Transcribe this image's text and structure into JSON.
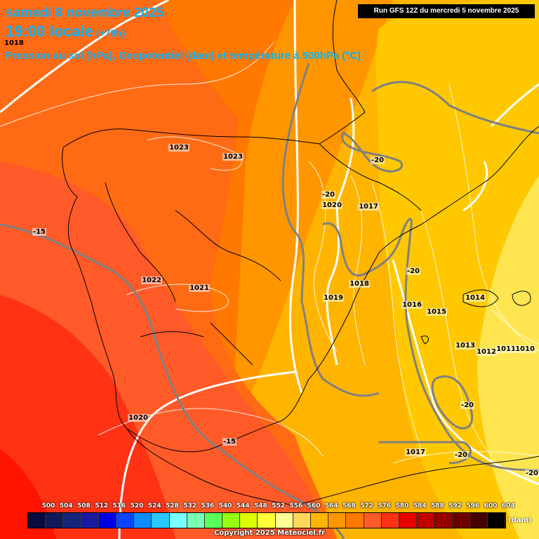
{
  "header": {
    "date_line": "samedi 8 novembre 2025",
    "time_line": "19:00 locale",
    "step": "(+78h)",
    "description": "Pression au sol (hPa), Geopotentiel (dam) et température à 500hPa (°C)",
    "corner_pressure": "1018"
  },
  "run_info": "Run GFS 12Z du mercredi 5 novembre 2025",
  "pressure_labels": [
    "1023",
    "1023",
    "1020",
    "1017",
    "1022",
    "1021",
    "1018",
    "1019",
    "1016",
    "1015",
    "1014",
    "1013",
    "1012",
    "1011",
    "1010",
    "1020",
    "1017"
  ],
  "temperature_labels": [
    "-20",
    "-20",
    "-15",
    "-20",
    "-15",
    "-20",
    "-20",
    "-20"
  ],
  "legend": {
    "ticks": [
      "500",
      "504",
      "508",
      "512",
      "516",
      "520",
      "524",
      "528",
      "532",
      "536",
      "540",
      "544",
      "548",
      "552",
      "556",
      "560",
      "564",
      "568",
      "572",
      "576",
      "580",
      "584",
      "588",
      "592",
      "596",
      "600",
      "604"
    ],
    "colors": [
      "#0a0a3c",
      "#101a5a",
      "#15257a",
      "#1a1aa0",
      "#0000e6",
      "#0a46ff",
      "#0f8cff",
      "#28c8ff",
      "#78ffff",
      "#78ffb4",
      "#5aff5a",
      "#96ff14",
      "#dcff00",
      "#ffff3c",
      "#ffff96",
      "#ffd75a",
      "#ffb400",
      "#ff9600",
      "#ff7800",
      "#ff5a28",
      "#ff3214",
      "#e60000",
      "#be0000",
      "#960000",
      "#6e0000",
      "#460000",
      "#000000"
    ],
    "unit": "(dam)"
  },
  "copyright": "Copyright 2025 Meteociel.fr"
}
